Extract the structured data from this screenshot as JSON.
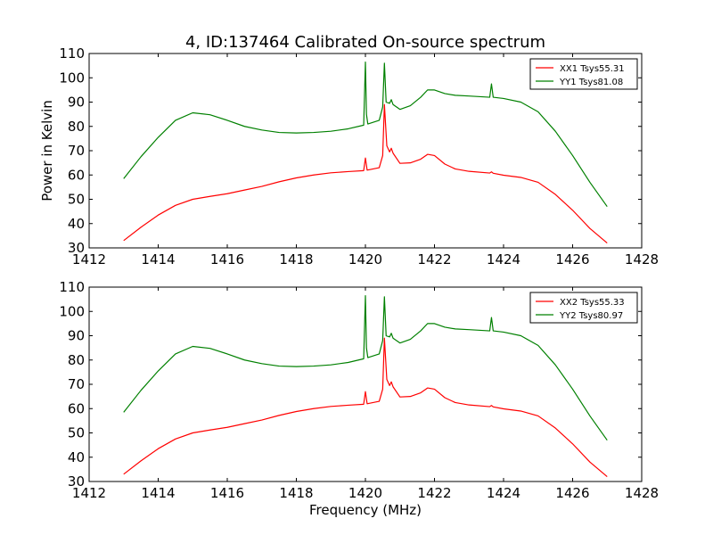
{
  "figure": {
    "title": "4, ID:137464 Calibrated On-source spectrum",
    "ylabel": "Power in Kelvin",
    "xlabel": "Frequency (MHz)"
  },
  "chart_data": [
    {
      "type": "line",
      "title": "4, ID:137464 Calibrated On-source spectrum",
      "xlabel": "",
      "ylabel": "Power in Kelvin",
      "xlim": [
        1412,
        1428
      ],
      "ylim": [
        30,
        110
      ],
      "xticks": [
        "1412",
        "1414",
        "1416",
        "1418",
        "1420",
        "1422",
        "1424",
        "1426",
        "1428"
      ],
      "yticks": [
        "30",
        "40",
        "50",
        "60",
        "70",
        "80",
        "90",
        "100",
        "110"
      ],
      "grid": false,
      "legend": "top-right",
      "series": [
        {
          "name": "XX1 Tsys55.31",
          "color": "#ff0000",
          "points": [
            [
              1413.0,
              33
            ],
            [
              1413.5,
              38.5
            ],
            [
              1414.0,
              43.5
            ],
            [
              1414.5,
              47.5
            ],
            [
              1415.0,
              50.0
            ],
            [
              1415.5,
              51.2
            ],
            [
              1416.0,
              52.3
            ],
            [
              1416.5,
              53.8
            ],
            [
              1417.0,
              55.3
            ],
            [
              1417.5,
              57.2
            ],
            [
              1418.0,
              58.8
            ],
            [
              1418.5,
              60.0
            ],
            [
              1419.0,
              60.9
            ],
            [
              1419.5,
              61.4
            ],
            [
              1419.95,
              61.8
            ],
            [
              1420.0,
              67.0
            ],
            [
              1420.05,
              62.0
            ],
            [
              1420.4,
              63.0
            ],
            [
              1420.5,
              68.0
            ],
            [
              1420.55,
              89.0
            ],
            [
              1420.62,
              72.0
            ],
            [
              1420.7,
              69.5
            ],
            [
              1420.75,
              71.0
            ],
            [
              1420.8,
              69.0
            ],
            [
              1421.0,
              64.8
            ],
            [
              1421.3,
              65.0
            ],
            [
              1421.6,
              66.5
            ],
            [
              1421.8,
              68.5
            ],
            [
              1422.0,
              68.0
            ],
            [
              1422.3,
              64.5
            ],
            [
              1422.6,
              62.5
            ],
            [
              1423.0,
              61.5
            ],
            [
              1423.6,
              60.8
            ],
            [
              1423.65,
              61.3
            ],
            [
              1423.7,
              60.7
            ],
            [
              1424.0,
              59.9
            ],
            [
              1424.5,
              59.0
            ],
            [
              1425.0,
              57.0
            ],
            [
              1425.5,
              52.0
            ],
            [
              1426.0,
              45.5
            ],
            [
              1426.5,
              38.0
            ],
            [
              1427.0,
              32.0
            ]
          ]
        },
        {
          "name": "YY1 Tsys81.08",
          "color": "#008000",
          "points": [
            [
              1413.0,
              58.5
            ],
            [
              1413.5,
              67.5
            ],
            [
              1414.0,
              75.5
            ],
            [
              1414.5,
              82.5
            ],
            [
              1415.0,
              85.6
            ],
            [
              1415.5,
              84.8
            ],
            [
              1416.0,
              82.5
            ],
            [
              1416.5,
              80.0
            ],
            [
              1417.0,
              78.5
            ],
            [
              1417.5,
              77.5
            ],
            [
              1418.0,
              77.3
            ],
            [
              1418.5,
              77.5
            ],
            [
              1419.0,
              78.0
            ],
            [
              1419.5,
              79.0
            ],
            [
              1419.95,
              80.5
            ],
            [
              1420.0,
              106.5
            ],
            [
              1420.03,
              85.0
            ],
            [
              1420.07,
              81.0
            ],
            [
              1420.4,
              82.5
            ],
            [
              1420.5,
              88.0
            ],
            [
              1420.55,
              106.0
            ],
            [
              1420.6,
              90.0
            ],
            [
              1420.7,
              89.5
            ],
            [
              1420.75,
              91.0
            ],
            [
              1420.8,
              89.0
            ],
            [
              1421.0,
              87.0
            ],
            [
              1421.3,
              88.5
            ],
            [
              1421.6,
              92.0
            ],
            [
              1421.8,
              95.0
            ],
            [
              1422.0,
              95.0
            ],
            [
              1422.3,
              93.5
            ],
            [
              1422.6,
              92.8
            ],
            [
              1423.0,
              92.5
            ],
            [
              1423.6,
              92.0
            ],
            [
              1423.65,
              97.5
            ],
            [
              1423.7,
              92.0
            ],
            [
              1424.0,
              91.5
            ],
            [
              1424.5,
              90.0
            ],
            [
              1425.0,
              86.0
            ],
            [
              1425.5,
              78.0
            ],
            [
              1426.0,
              68.0
            ],
            [
              1426.5,
              57.0
            ],
            [
              1427.0,
              47.0
            ]
          ]
        }
      ]
    },
    {
      "type": "line",
      "title": "",
      "xlabel": "Frequency (MHz)",
      "ylabel": "",
      "xlim": [
        1412,
        1428
      ],
      "ylim": [
        30,
        110
      ],
      "xticks": [
        "1412",
        "1414",
        "1416",
        "1418",
        "1420",
        "1422",
        "1424",
        "1426",
        "1428"
      ],
      "yticks": [
        "30",
        "40",
        "50",
        "60",
        "70",
        "80",
        "90",
        "100",
        "110"
      ],
      "grid": false,
      "legend": "top-right",
      "series": [
        {
          "name": "XX2 Tsys55.33",
          "color": "#ff0000",
          "points": [
            [
              1413.0,
              33
            ],
            [
              1413.5,
              38.5
            ],
            [
              1414.0,
              43.5
            ],
            [
              1414.5,
              47.5
            ],
            [
              1415.0,
              50.0
            ],
            [
              1415.5,
              51.2
            ],
            [
              1416.0,
              52.3
            ],
            [
              1416.5,
              53.8
            ],
            [
              1417.0,
              55.3
            ],
            [
              1417.5,
              57.2
            ],
            [
              1418.0,
              58.8
            ],
            [
              1418.5,
              60.0
            ],
            [
              1419.0,
              60.9
            ],
            [
              1419.5,
              61.4
            ],
            [
              1419.95,
              61.8
            ],
            [
              1420.0,
              67.0
            ],
            [
              1420.05,
              62.0
            ],
            [
              1420.4,
              63.0
            ],
            [
              1420.5,
              68.0
            ],
            [
              1420.55,
              89.0
            ],
            [
              1420.62,
              72.0
            ],
            [
              1420.7,
              69.5
            ],
            [
              1420.75,
              71.0
            ],
            [
              1420.8,
              69.0
            ],
            [
              1421.0,
              64.8
            ],
            [
              1421.3,
              65.0
            ],
            [
              1421.6,
              66.5
            ],
            [
              1421.8,
              68.5
            ],
            [
              1422.0,
              68.0
            ],
            [
              1422.3,
              64.5
            ],
            [
              1422.6,
              62.5
            ],
            [
              1423.0,
              61.5
            ],
            [
              1423.6,
              60.8
            ],
            [
              1423.65,
              61.3
            ],
            [
              1423.7,
              60.7
            ],
            [
              1424.0,
              59.9
            ],
            [
              1424.5,
              59.0
            ],
            [
              1425.0,
              57.0
            ],
            [
              1425.5,
              52.0
            ],
            [
              1426.0,
              45.5
            ],
            [
              1426.5,
              38.0
            ],
            [
              1427.0,
              32.0
            ]
          ]
        },
        {
          "name": "YY2 Tsys80.97",
          "color": "#008000",
          "points": [
            [
              1413.0,
              58.5
            ],
            [
              1413.5,
              67.5
            ],
            [
              1414.0,
              75.5
            ],
            [
              1414.5,
              82.5
            ],
            [
              1415.0,
              85.6
            ],
            [
              1415.5,
              84.8
            ],
            [
              1416.0,
              82.5
            ],
            [
              1416.5,
              80.0
            ],
            [
              1417.0,
              78.5
            ],
            [
              1417.5,
              77.5
            ],
            [
              1418.0,
              77.3
            ],
            [
              1418.5,
              77.5
            ],
            [
              1419.0,
              78.0
            ],
            [
              1419.5,
              79.0
            ],
            [
              1419.95,
              80.5
            ],
            [
              1420.0,
              106.5
            ],
            [
              1420.03,
              85.0
            ],
            [
              1420.07,
              81.0
            ],
            [
              1420.4,
              82.5
            ],
            [
              1420.5,
              88.0
            ],
            [
              1420.55,
              106.0
            ],
            [
              1420.6,
              90.0
            ],
            [
              1420.7,
              89.5
            ],
            [
              1420.75,
              91.0
            ],
            [
              1420.8,
              89.0
            ],
            [
              1421.0,
              87.0
            ],
            [
              1421.3,
              88.5
            ],
            [
              1421.6,
              92.0
            ],
            [
              1421.8,
              95.0
            ],
            [
              1422.0,
              95.0
            ],
            [
              1422.3,
              93.5
            ],
            [
              1422.6,
              92.8
            ],
            [
              1423.0,
              92.5
            ],
            [
              1423.6,
              92.0
            ],
            [
              1423.65,
              97.5
            ],
            [
              1423.7,
              92.0
            ],
            [
              1424.0,
              91.5
            ],
            [
              1424.5,
              90.0
            ],
            [
              1425.0,
              86.0
            ],
            [
              1425.5,
              78.0
            ],
            [
              1426.0,
              68.0
            ],
            [
              1426.5,
              57.0
            ],
            [
              1427.0,
              47.0
            ]
          ]
        }
      ]
    }
  ]
}
